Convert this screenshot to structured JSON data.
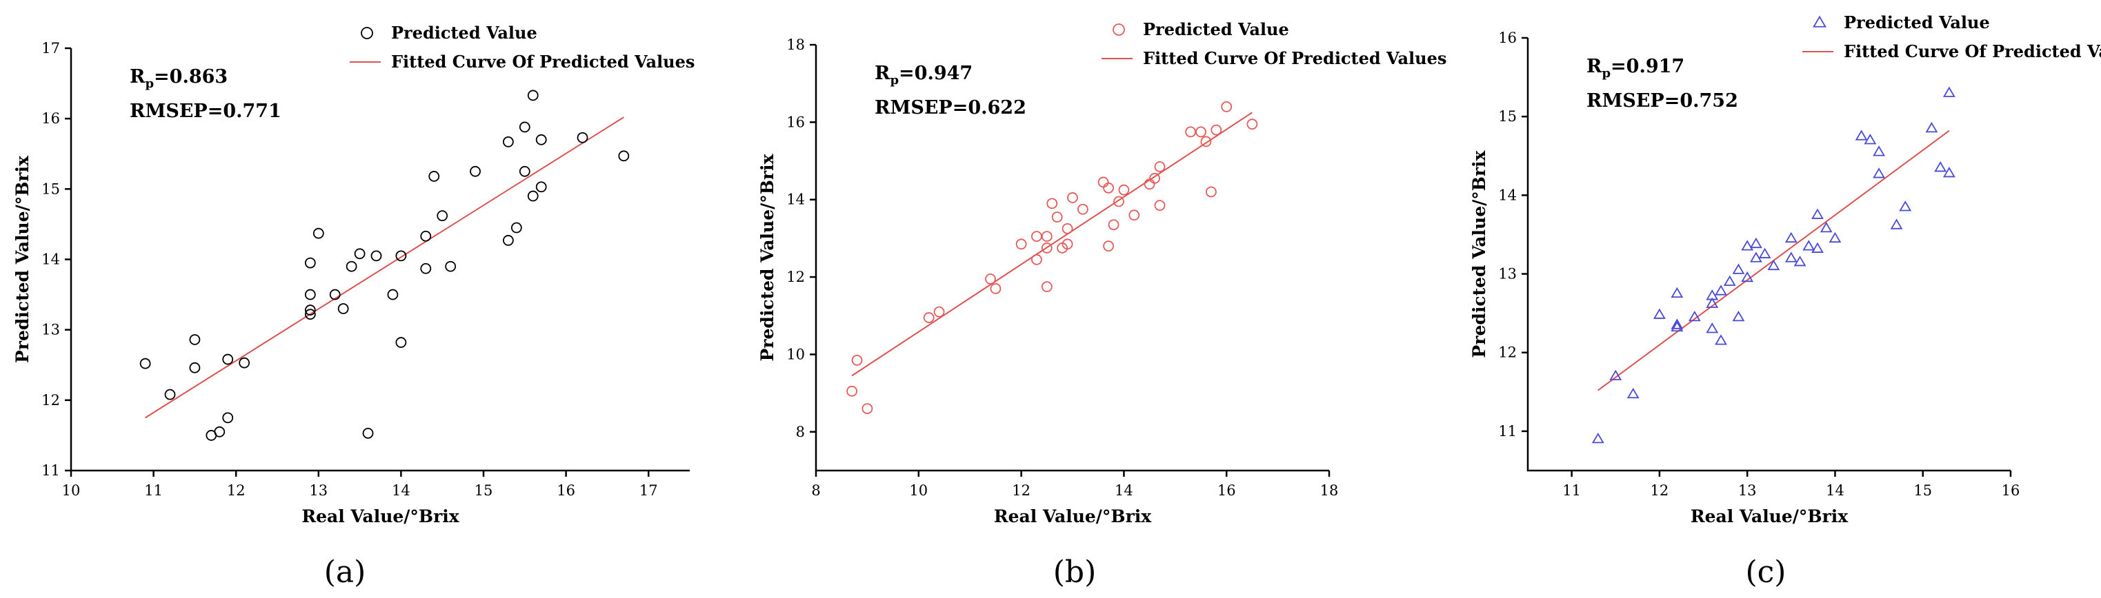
{
  "chart_data": [
    {
      "type": "scatter",
      "panel_label": "(a)",
      "xlabel": "Real Value/°Brix",
      "ylabel": "Predicted Value/°Brix",
      "xlim": [
        10,
        17.5
      ],
      "ylim": [
        11,
        17
      ],
      "xticks": [
        "10",
        "11",
        "12",
        "13",
        "14",
        "15",
        "16",
        "17"
      ],
      "yticks": [
        "11",
        "12",
        "13",
        "14",
        "15",
        "16",
        "17"
      ],
      "stats": {
        "rp_base": "R",
        "rp_sub": "p",
        "rp_value": "=0.863",
        "rmsep": "RMSEP=0.771"
      },
      "legend": {
        "points": "Predicted Value",
        "line": "Fitted Curve Of Predicted Values"
      },
      "marker": "circle",
      "color": "#000000",
      "line_color": "#e05050",
      "fit_line": {
        "x": [
          10.9,
          16.7
        ],
        "y": [
          11.75,
          16.02
        ]
      },
      "points": [
        [
          10.9,
          12.52
        ],
        [
          11.2,
          12.08
        ],
        [
          11.5,
          12.86
        ],
        [
          11.5,
          12.46
        ],
        [
          11.7,
          11.5
        ],
        [
          11.8,
          11.55
        ],
        [
          11.9,
          11.75
        ],
        [
          11.9,
          12.58
        ],
        [
          12.1,
          12.53
        ],
        [
          12.9,
          13.22
        ],
        [
          12.9,
          13.28
        ],
        [
          12.9,
          13.5
        ],
        [
          12.9,
          13.95
        ],
        [
          13.0,
          14.37
        ],
        [
          13.2,
          13.5
        ],
        [
          13.3,
          13.3
        ],
        [
          13.4,
          13.9
        ],
        [
          13.5,
          14.08
        ],
        [
          13.6,
          11.53
        ],
        [
          13.7,
          14.05
        ],
        [
          13.9,
          13.5
        ],
        [
          14.0,
          12.82
        ],
        [
          14.0,
          14.05
        ],
        [
          14.3,
          13.87
        ],
        [
          14.3,
          14.33
        ],
        [
          14.4,
          15.18
        ],
        [
          14.5,
          14.62
        ],
        [
          14.6,
          13.9
        ],
        [
          14.9,
          15.25
        ],
        [
          15.3,
          14.27
        ],
        [
          15.3,
          15.67
        ],
        [
          15.4,
          14.45
        ],
        [
          15.5,
          15.88
        ],
        [
          15.5,
          15.25
        ],
        [
          15.6,
          16.33
        ],
        [
          15.6,
          14.9
        ],
        [
          15.7,
          15.03
        ],
        [
          15.7,
          15.7
        ],
        [
          16.2,
          15.73
        ],
        [
          16.7,
          15.47
        ]
      ]
    },
    {
      "type": "scatter",
      "panel_label": "(b)",
      "xlabel": "Real Value/°Brix",
      "ylabel": "Predicted Value/°Brix",
      "xlim": [
        8,
        18
      ],
      "ylim": [
        7,
        18
      ],
      "xticks": [
        "8",
        "10",
        "12",
        "14",
        "16",
        "18"
      ],
      "yticks": [
        "8",
        "10",
        "12",
        "14",
        "16",
        "18"
      ],
      "stats": {
        "rp_base": "R",
        "rp_sub": "p",
        "rp_value": "=0.947",
        "rmsep": "RMSEP=0.622"
      },
      "legend": {
        "points": "Predicted Value",
        "line": "Fitted Curve Of Predicted Values"
      },
      "marker": "circle",
      "color": "#e85a5a",
      "line_color": "#e05050",
      "fit_line": {
        "x": [
          8.7,
          16.5
        ],
        "y": [
          9.45,
          16.25
        ]
      },
      "points": [
        [
          8.7,
          9.05
        ],
        [
          8.8,
          9.85
        ],
        [
          9.0,
          8.6
        ],
        [
          10.2,
          10.95
        ],
        [
          10.4,
          11.1
        ],
        [
          11.4,
          11.95
        ],
        [
          11.5,
          11.7
        ],
        [
          12.0,
          12.85
        ],
        [
          12.3,
          12.45
        ],
        [
          12.3,
          13.05
        ],
        [
          12.5,
          12.75
        ],
        [
          12.5,
          11.75
        ],
        [
          12.5,
          13.05
        ],
        [
          12.6,
          13.9
        ],
        [
          12.7,
          13.55
        ],
        [
          12.8,
          12.75
        ],
        [
          12.9,
          13.25
        ],
        [
          12.9,
          12.85
        ],
        [
          13.0,
          14.05
        ],
        [
          13.2,
          13.75
        ],
        [
          13.6,
          14.45
        ],
        [
          13.7,
          12.8
        ],
        [
          13.7,
          14.3
        ],
        [
          13.8,
          13.35
        ],
        [
          13.9,
          13.95
        ],
        [
          14.0,
          14.25
        ],
        [
          14.2,
          13.6
        ],
        [
          14.5,
          14.4
        ],
        [
          14.6,
          14.55
        ],
        [
          14.7,
          14.85
        ],
        [
          14.7,
          13.85
        ],
        [
          15.3,
          15.75
        ],
        [
          15.5,
          15.75
        ],
        [
          15.6,
          15.5
        ],
        [
          15.7,
          14.2
        ],
        [
          15.8,
          15.8
        ],
        [
          16.0,
          16.4
        ],
        [
          16.5,
          15.95
        ]
      ]
    },
    {
      "type": "scatter",
      "panel_label": "(c)",
      "xlabel": "Real Value/°Brix",
      "ylabel": "Predicted Value/°Brix",
      "xlim": [
        10.5,
        16
      ],
      "ylim": [
        10.5,
        16
      ],
      "xticks": [
        "11",
        "12",
        "13",
        "14",
        "15",
        "16"
      ],
      "yticks": [
        "11",
        "12",
        "13",
        "14",
        "15",
        "16"
      ],
      "stats": {
        "rp_base": "R",
        "rp_sub": "p",
        "rp_value": "=0.917",
        "rmsep": "RMSEP=0.752"
      },
      "legend": {
        "points": "Predicted Value",
        "line": "Fitted Curve Of Predicted Values"
      },
      "marker": "triangle",
      "color": "#4a4ad8",
      "line_color": "#e05050",
      "fit_line": {
        "x": [
          11.3,
          15.3
        ],
        "y": [
          11.52,
          14.82
        ]
      },
      "points": [
        [
          11.3,
          10.9
        ],
        [
          11.5,
          11.7
        ],
        [
          11.7,
          11.47
        ],
        [
          12.0,
          12.48
        ],
        [
          12.2,
          12.32
        ],
        [
          12.2,
          12.35
        ],
        [
          12.2,
          12.75
        ],
        [
          12.4,
          12.45
        ],
        [
          12.6,
          12.3
        ],
        [
          12.6,
          12.62
        ],
        [
          12.6,
          12.72
        ],
        [
          12.7,
          12.15
        ],
        [
          12.7,
          12.78
        ],
        [
          12.8,
          12.9
        ],
        [
          12.9,
          12.45
        ],
        [
          12.9,
          13.05
        ],
        [
          13.0,
          13.35
        ],
        [
          13.0,
          12.95
        ],
        [
          13.1,
          13.38
        ],
        [
          13.1,
          13.2
        ],
        [
          13.2,
          13.25
        ],
        [
          13.3,
          13.1
        ],
        [
          13.5,
          13.2
        ],
        [
          13.5,
          13.45
        ],
        [
          13.6,
          13.15
        ],
        [
          13.7,
          13.35
        ],
        [
          13.8,
          13.32
        ],
        [
          13.8,
          13.75
        ],
        [
          13.9,
          13.58
        ],
        [
          14.0,
          13.45
        ],
        [
          14.3,
          14.75
        ],
        [
          14.4,
          14.7
        ],
        [
          14.5,
          14.27
        ],
        [
          14.5,
          14.55
        ],
        [
          14.7,
          13.62
        ],
        [
          14.8,
          13.85
        ],
        [
          15.1,
          14.85
        ],
        [
          15.2,
          14.35
        ],
        [
          15.3,
          14.28
        ],
        [
          15.3,
          15.3
        ]
      ]
    }
  ]
}
